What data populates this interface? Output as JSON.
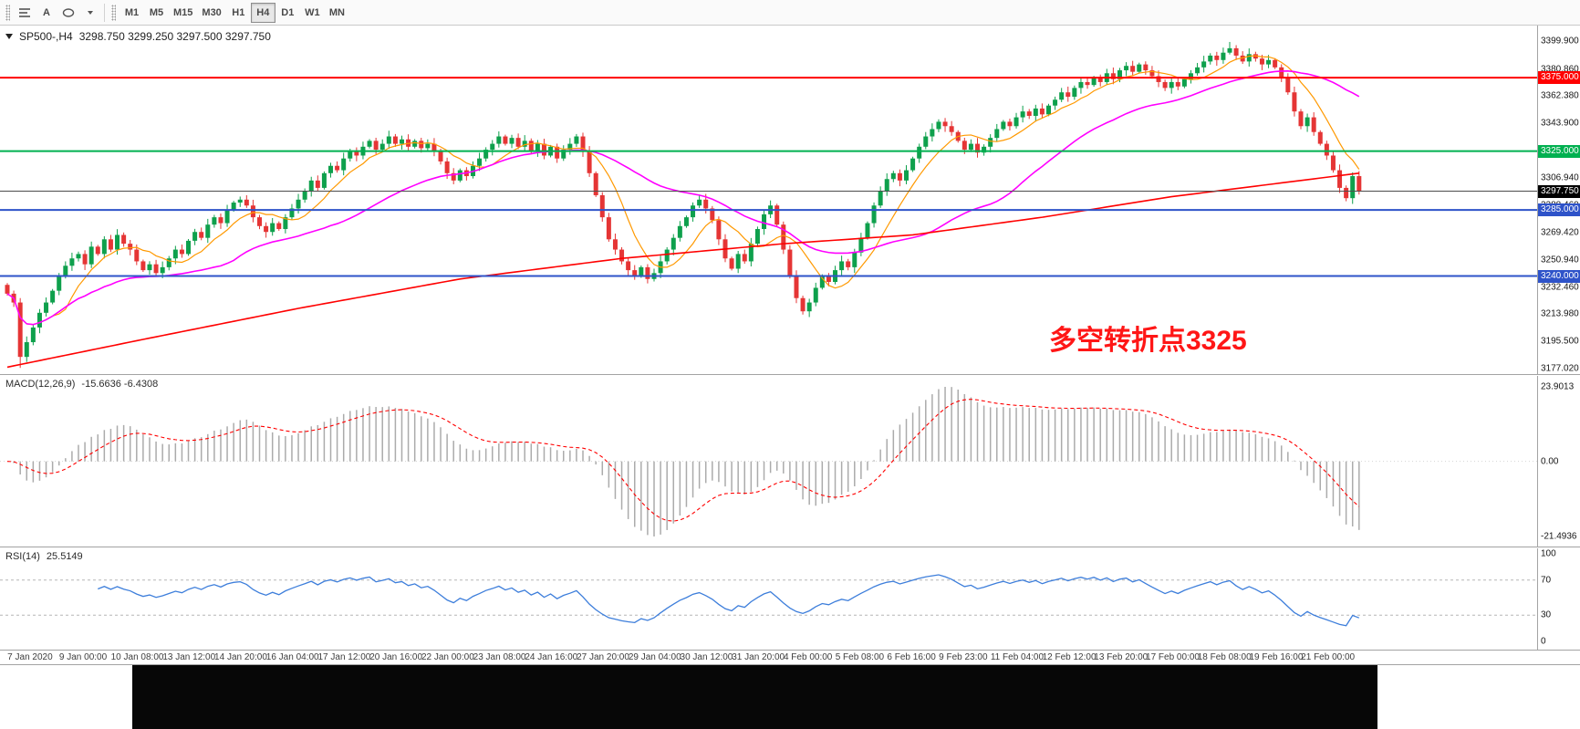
{
  "toolbar": {
    "timeframes": [
      "M1",
      "M5",
      "M15",
      "M30",
      "H1",
      "H4",
      "D1",
      "W1",
      "MN"
    ],
    "active_timeframe": "H4",
    "text_tool_label": "A"
  },
  "chart": {
    "title": "SP500-,H4",
    "ohlc": "3298.750 3299.250 3297.500 3297.750",
    "annotation": "多空转折点3325",
    "annotation_color": "#ff1616",
    "price_min": 3177.02,
    "price_max": 3399.9,
    "axis_labels": [
      "3399.900",
      "3380.860",
      "3362.380",
      "3343.900",
      "3325.420",
      "3306.940",
      "3288.460",
      "3269.420",
      "3250.940",
      "3232.460",
      "3213.980",
      "3195.500",
      "3177.020"
    ],
    "hlines": [
      {
        "price": 3375.0,
        "color": "#ff0000",
        "label": "3375.000",
        "width": 2
      },
      {
        "price": 3325.0,
        "color": "#00b050",
        "label": "3325.000",
        "width": 2
      },
      {
        "price": 3285.0,
        "color": "#2e53c9",
        "label": "3285.000",
        "width": 2
      },
      {
        "price": 3240.0,
        "color": "#2e53c9",
        "label": "3240.000",
        "width": 2
      }
    ],
    "current_price": {
      "value": 3297.75,
      "label": "3297.750",
      "color": "#000000"
    },
    "colors": {
      "up": "#0ea04c",
      "down": "#e53535",
      "ma_fast": "#ff9900",
      "ma_mid": "#ff00ff",
      "ma_slow": "#ff0000",
      "hist": "#ababab",
      "signal": "#ff0000",
      "rsi": "#3d7edb"
    }
  },
  "chart_data": {
    "type": "candlestick",
    "symbol": "SP500-",
    "timeframe": "H4",
    "closes": [
      3228,
      3222,
      3185,
      3195,
      3205,
      3215,
      3222,
      3230,
      3240,
      3247,
      3252,
      3255,
      3248,
      3260,
      3255,
      3265,
      3258,
      3268,
      3262,
      3258,
      3250,
      3244,
      3248,
      3242,
      3246,
      3252,
      3258,
      3255,
      3264,
      3270,
      3266,
      3275,
      3280,
      3276,
      3285,
      3290,
      3292,
      3288,
      3280,
      3274,
      3270,
      3276,
      3272,
      3280,
      3286,
      3292,
      3298,
      3305,
      3300,
      3310,
      3315,
      3312,
      3320,
      3325,
      3322,
      3328,
      3332,
      3326,
      3330,
      3335,
      3330,
      3333,
      3328,
      3332,
      3327,
      3330,
      3325,
      3318,
      3310,
      3305,
      3312,
      3308,
      3315,
      3320,
      3326,
      3330,
      3335,
      3330,
      3334,
      3328,
      3332,
      3325,
      3330,
      3322,
      3328,
      3320,
      3326,
      3330,
      3335,
      3325,
      3310,
      3295,
      3280,
      3265,
      3258,
      3250,
      3244,
      3240,
      3246,
      3238,
      3242,
      3250,
      3258,
      3266,
      3274,
      3280,
      3288,
      3292,
      3286,
      3278,
      3265,
      3252,
      3245,
      3255,
      3250,
      3262,
      3272,
      3282,
      3288,
      3275,
      3258,
      3240,
      3225,
      3216,
      3222,
      3232,
      3240,
      3236,
      3244,
      3250,
      3246,
      3256,
      3266,
      3276,
      3288,
      3298,
      3306,
      3310,
      3305,
      3312,
      3320,
      3328,
      3335,
      3340,
      3345,
      3342,
      3338,
      3332,
      3326,
      3330,
      3324,
      3328,
      3334,
      3340,
      3345,
      3342,
      3348,
      3352,
      3349,
      3354,
      3350,
      3356,
      3360,
      3365,
      3362,
      3368,
      3372,
      3370,
      3375,
      3372,
      3378,
      3374,
      3380,
      3383,
      3379,
      3384,
      3380,
      3376,
      3372,
      3368,
      3372,
      3369,
      3374,
      3378,
      3382,
      3386,
      3390,
      3387,
      3392,
      3395,
      3390,
      3386,
      3391,
      3388,
      3384,
      3387,
      3382,
      3375,
      3365,
      3352,
      3342,
      3348,
      3338,
      3330,
      3322,
      3312,
      3300,
      3293,
      3308,
      3298
    ],
    "wick_overrides": {
      "2": {
        "low": 3177.5
      },
      "123": {
        "low": 3213.8
      },
      "189": {
        "high": 3399.3
      }
    },
    "ma_slow_points": [
      [
        0,
        3178
      ],
      [
        20,
        3196
      ],
      [
        45,
        3218
      ],
      [
        70,
        3238
      ],
      [
        95,
        3252
      ],
      [
        120,
        3262
      ],
      [
        140,
        3268
      ],
      [
        160,
        3280
      ],
      [
        180,
        3294
      ],
      [
        209,
        3310
      ]
    ]
  },
  "macd": {
    "label": "MACD(12,26,9)",
    "values": "-15.6636 -6.4308",
    "axis": [
      "23.9013",
      "0.00",
      "-21.4936"
    ]
  },
  "rsi": {
    "label": "RSI(14)",
    "value": "25.5149",
    "axis": [
      "100",
      "70",
      "30",
      "0"
    ],
    "levels": [
      70,
      30
    ]
  },
  "time_axis": [
    "7 Jan 2020",
    "9 Jan 00:00",
    "10 Jan 08:00",
    "13 Jan 12:00",
    "14 Jan 20:00",
    "16 Jan 04:00",
    "17 Jan 12:00",
    "20 Jan 16:00",
    "22 Jan 00:00",
    "23 Jan 08:00",
    "24 Jan 16:00",
    "27 Jan 20:00",
    "29 Jan 04:00",
    "30 Jan 12:00",
    "31 Jan 20:00",
    "4 Feb 00:00",
    "5 Feb 08:00",
    "6 Feb 16:00",
    "9 Feb 23:00",
    "11 Feb 04:00",
    "12 Feb 12:00",
    "13 Feb 20:00",
    "17 Feb 00:00",
    "18 Feb 08:00",
    "19 Feb 16:00",
    "21 Feb 00:00"
  ]
}
